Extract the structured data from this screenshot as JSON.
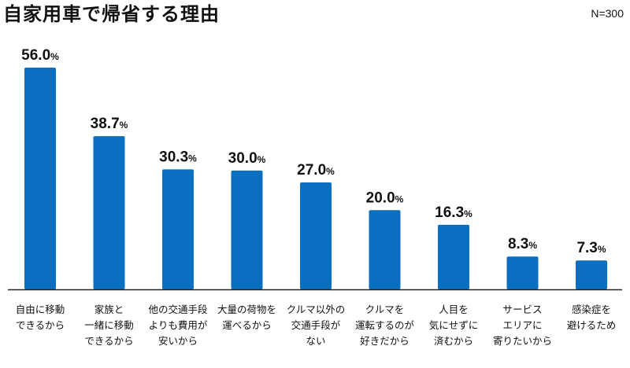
{
  "header": {
    "title": "自家用車で帰省する理由",
    "sample_note": "N=300"
  },
  "colors": {
    "bar": "#0A6FC0",
    "baseline": "#222222",
    "text": "#111111"
  },
  "chart_data": {
    "type": "bar",
    "title": "自家用車で帰省する理由",
    "unit": "%",
    "ylim": [
      0,
      56
    ],
    "grid": false,
    "legend": "none",
    "categories": [
      [
        "自由に移動",
        "できるから"
      ],
      [
        "家族と",
        "一緒に移動",
        "できるから"
      ],
      [
        "他の交通手段",
        "よりも費用が",
        "安いから"
      ],
      [
        "大量の荷物を",
        "運べるから"
      ],
      [
        "クルマ以外の",
        "交通手段が",
        "ない"
      ],
      [
        "クルマを",
        "運転するのが",
        "好きだから"
      ],
      [
        "人目を",
        "気にせずに",
        "済むから"
      ],
      [
        "サービス",
        "エリアに",
        "寄りたいから"
      ],
      [
        "感染症を",
        "避けるため"
      ]
    ],
    "values": [
      56.0,
      38.7,
      30.3,
      30.0,
      27.0,
      20.0,
      16.3,
      8.3,
      7.3
    ],
    "value_labels": [
      "56.0",
      "38.7",
      "30.3",
      "30.0",
      "27.0",
      "20.0",
      "16.3",
      "8.3",
      "7.3"
    ]
  }
}
